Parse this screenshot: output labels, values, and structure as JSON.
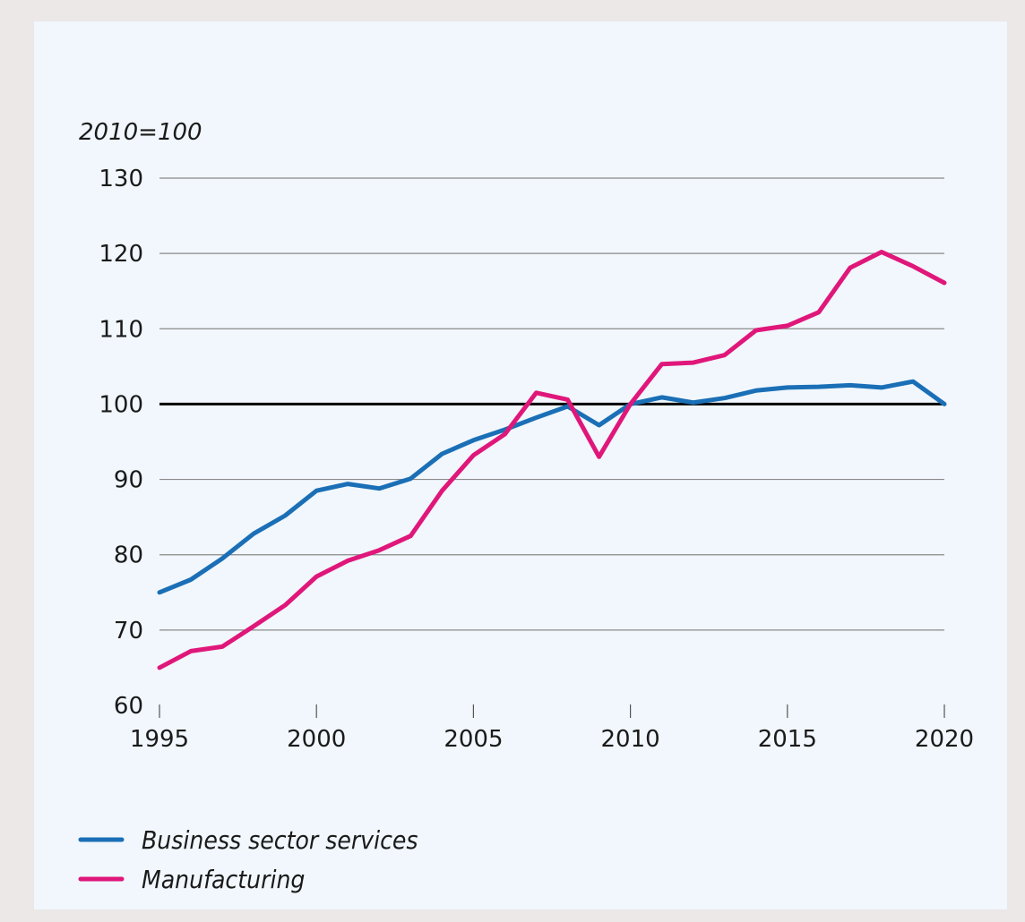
{
  "chart_data": {
    "type": "line",
    "unit_label": "2010=100",
    "xlim": [
      1995,
      2020
    ],
    "ylim": [
      60,
      130
    ],
    "x_ticks": [
      1995,
      2000,
      2005,
      2010,
      2015,
      2020
    ],
    "y_ticks": [
      60,
      70,
      80,
      90,
      100,
      110,
      120,
      130
    ],
    "grid": "horizontal",
    "reference_line": 100,
    "legend_position": "bottom-left",
    "x": [
      1995,
      1996,
      1997,
      1998,
      1999,
      2000,
      2001,
      2002,
      2003,
      2004,
      2005,
      2006,
      2007,
      2008,
      2009,
      2010,
      2011,
      2012,
      2013,
      2014,
      2015,
      2016,
      2017,
      2018,
      2019,
      2020
    ],
    "series": [
      {
        "name": "Business sector services",
        "color": "#1a6fb6",
        "values": [
          75.0,
          76.7,
          79.5,
          82.8,
          85.2,
          88.5,
          89.4,
          88.8,
          90.1,
          93.4,
          95.2,
          96.6,
          98.2,
          99.7,
          97.2,
          100.0,
          100.9,
          100.2,
          100.8,
          101.8,
          102.2,
          102.3,
          102.5,
          102.2,
          103.0,
          100.0
        ]
      },
      {
        "name": "Manufacturing",
        "color": "#e0177a",
        "values": [
          65.0,
          67.2,
          67.8,
          70.5,
          73.3,
          77.1,
          79.2,
          80.6,
          82.5,
          88.5,
          93.2,
          96.0,
          101.5,
          100.6,
          93.0,
          100.0,
          105.3,
          105.5,
          106.5,
          109.8,
          110.4,
          112.2,
          118.1,
          120.2,
          118.3,
          116.1
        ]
      }
    ]
  }
}
